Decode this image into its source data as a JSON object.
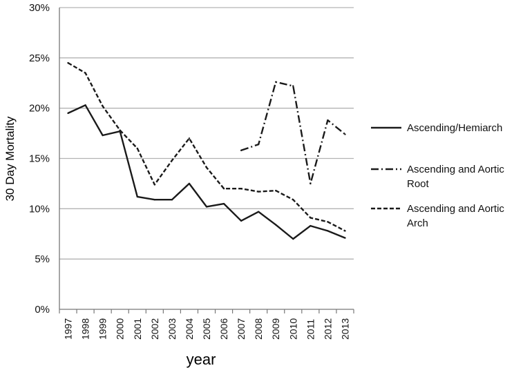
{
  "chart_data": {
    "type": "line",
    "title": "",
    "xlabel": "year",
    "ylabel": "30 Day Mortality",
    "categories": [
      "1997",
      "1998",
      "1999",
      "2000",
      "2001",
      "2002",
      "2003",
      "2004",
      "2005",
      "2006",
      "2007",
      "2008",
      "2009",
      "2010",
      "2011",
      "2012",
      "2013"
    ],
    "ylim": [
      0,
      30
    ],
    "yticks": [
      "0%",
      "5%",
      "10%",
      "15%",
      "20%",
      "25%",
      "30%"
    ],
    "grid": true,
    "legend_position": "right",
    "series": [
      {
        "name": "Ascending/Hemiarch",
        "line_style": "solid",
        "values": [
          19.5,
          20.3,
          17.3,
          17.7,
          11.2,
          10.9,
          10.9,
          12.5,
          10.2,
          10.5,
          8.8,
          9.7,
          8.4,
          7.0,
          8.3,
          7.8,
          7.1
        ]
      },
      {
        "name": "Ascending and Aortic Root",
        "legend_lines": [
          "Ascending and Aortic",
          "Root"
        ],
        "line_style": "dash-dot",
        "values": [
          null,
          null,
          null,
          null,
          null,
          null,
          null,
          null,
          null,
          null,
          15.8,
          16.4,
          22.6,
          22.2,
          12.5,
          18.8,
          17.4
        ]
      },
      {
        "name": "Ascending and Aortic Arch",
        "legend_lines": [
          "Ascending and Aortic",
          "Arch"
        ],
        "line_style": "dashed",
        "values": [
          24.5,
          23.5,
          20.2,
          17.8,
          16.0,
          12.4,
          14.8,
          17.0,
          14.1,
          12.0,
          12.0,
          11.7,
          11.8,
          10.9,
          9.1,
          8.7,
          7.8
        ]
      }
    ],
    "colors": {
      "line": "#1a1a1a",
      "grid": "#b3b3b3",
      "axis": "#777777"
    }
  }
}
